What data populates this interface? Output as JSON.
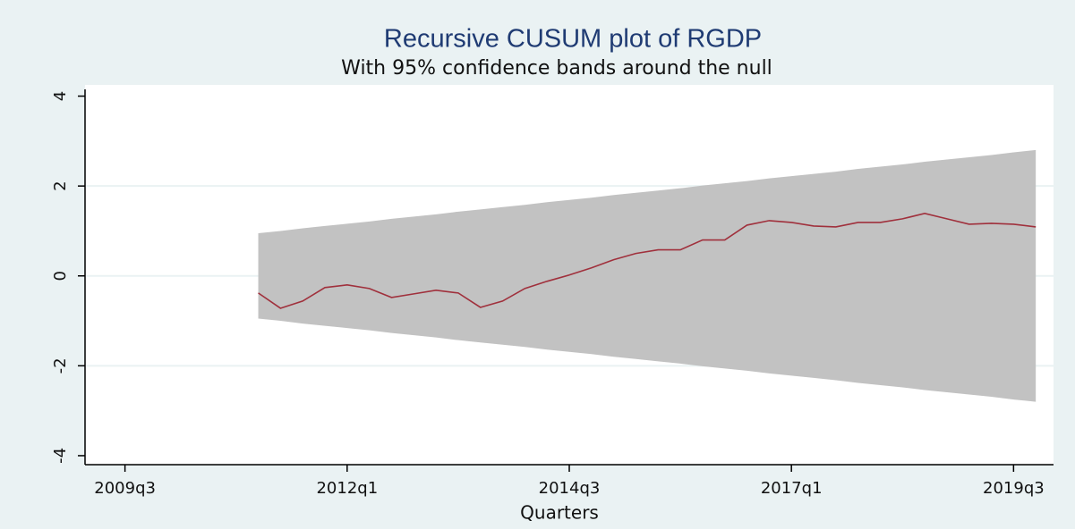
{
  "chart_data": {
    "type": "cusum",
    "title": "Recursive CUSUM plot of RGDP",
    "subtitle": "With 95% confidence bands around the null",
    "x_label": "Quarters",
    "x": [
      "2011q1",
      "2011q2",
      "2011q3",
      "2011q4",
      "2012q1",
      "2012q2",
      "2012q3",
      "2012q4",
      "2013q1",
      "2013q2",
      "2013q3",
      "2013q4",
      "2014q1",
      "2014q2",
      "2014q3",
      "2014q4",
      "2015q1",
      "2015q2",
      "2015q3",
      "2015q4",
      "2016q1",
      "2016q2",
      "2016q3",
      "2016q4",
      "2017q1",
      "2017q2",
      "2017q3",
      "2017q4",
      "2018q1",
      "2018q2",
      "2018q3",
      "2018q4",
      "2019q1",
      "2019q2",
      "2019q3",
      "2019q4"
    ],
    "values": [
      -0.38,
      -0.72,
      -0.56,
      -0.26,
      -0.2,
      -0.28,
      -0.48,
      -0.4,
      -0.32,
      -0.38,
      -0.7,
      -0.56,
      -0.28,
      -0.12,
      0.02,
      0.18,
      0.36,
      0.5,
      0.58,
      0.58,
      0.8,
      0.8,
      1.13,
      1.23,
      1.19,
      1.11,
      1.09,
      1.19,
      1.19,
      1.27,
      1.39,
      1.27,
      1.15,
      1.17,
      1.15,
      1.09
    ],
    "band_upper": [
      0.95,
      1.0,
      1.06,
      1.11,
      1.16,
      1.21,
      1.27,
      1.32,
      1.37,
      1.43,
      1.48,
      1.53,
      1.58,
      1.64,
      1.69,
      1.74,
      1.8,
      1.85,
      1.9,
      1.95,
      2.01,
      2.06,
      2.11,
      2.17,
      2.22,
      2.27,
      2.32,
      2.38,
      2.43,
      2.48,
      2.54,
      2.59,
      2.64,
      2.69,
      2.75,
      2.8
    ],
    "band_lower": [
      -0.95,
      -1.0,
      -1.06,
      -1.11,
      -1.16,
      -1.21,
      -1.27,
      -1.32,
      -1.37,
      -1.43,
      -1.48,
      -1.53,
      -1.58,
      -1.64,
      -1.69,
      -1.74,
      -1.8,
      -1.85,
      -1.9,
      -1.95,
      -2.01,
      -2.06,
      -2.11,
      -2.17,
      -2.22,
      -2.27,
      -2.32,
      -2.38,
      -2.43,
      -2.48,
      -2.54,
      -2.59,
      -2.64,
      -2.69,
      -2.75,
      -2.8
    ],
    "line_color": "#a0303c",
    "band_color": "#c2c2c2",
    "xlim": [
      "2009q1",
      "2020q1"
    ],
    "xticks": [
      "2009q3",
      "2012q1",
      "2014q3",
      "2017q1",
      "2019q3"
    ],
    "ylim": [
      -4.2,
      4.25
    ],
    "yticks": [
      4,
      2,
      0,
      -2,
      -4
    ],
    "grid": true
  }
}
